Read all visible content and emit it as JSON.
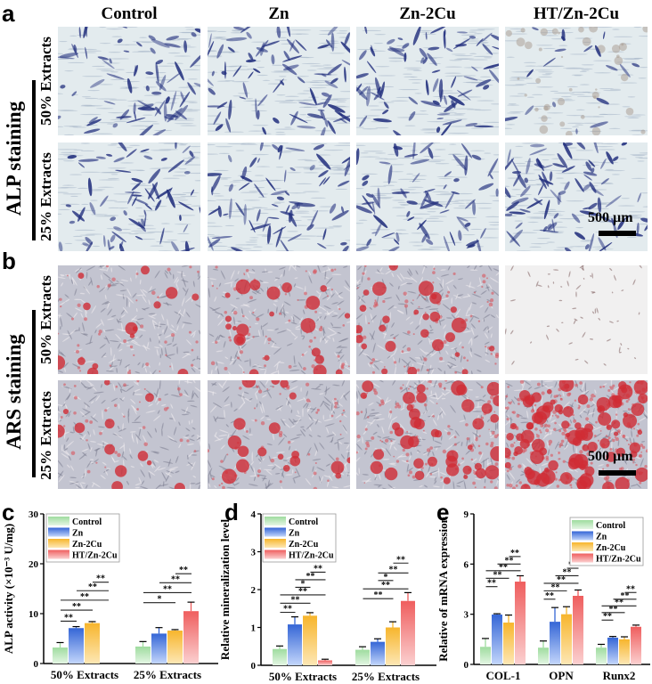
{
  "panels": {
    "a": "a",
    "b": "b",
    "c": "c",
    "d": "d",
    "e": "e"
  },
  "column_headers": [
    "Control",
    "Zn",
    "Zn-2Cu",
    "HT/Zn-2Cu"
  ],
  "row_groups": {
    "alp": {
      "title": "ALP staining",
      "rows": [
        "50% Extracts",
        "25% Extracts"
      ]
    },
    "ars": {
      "title": "ARS staining",
      "rows": [
        "50% Extracts",
        "25% Extracts"
      ]
    }
  },
  "scale_bar": "500 µm",
  "legend": [
    "Control",
    "Zn",
    "Zn-2Cu",
    "HT/Zn-2Cu"
  ],
  "colors": {
    "Control": "#9fdc9f",
    "Zn": "#3566d6",
    "Zn-2Cu": "#f7b52c",
    "HT/Zn-2Cu": "#ef5e5e"
  },
  "chart_data": [
    {
      "type": "bar",
      "panel": "c",
      "ylabel": "ALP activity (×10⁻³ U/mg)",
      "ylim": [
        0,
        30
      ],
      "yticks": [
        0,
        10,
        20,
        30
      ],
      "categories": [
        "50% Extracts",
        "25% Extracts"
      ],
      "series": [
        {
          "name": "Control",
          "values": [
            3.2,
            3.4
          ],
          "errors": [
            1.0,
            1.0
          ]
        },
        {
          "name": "Zn",
          "values": [
            7.1,
            6.0
          ],
          "errors": [
            0.3,
            1.2
          ]
        },
        {
          "name": "Zn-2Cu",
          "values": [
            8.1,
            6.6
          ],
          "errors": [
            0.3,
            0.2
          ]
        },
        {
          "name": "HT/Zn-2Cu",
          "values": [
            null,
            10.5
          ],
          "errors": [
            null,
            1.8
          ]
        }
      ],
      "significance": [
        [
          0,
          0,
          1,
          8.5,
          "**"
        ],
        [
          0,
          0,
          2,
          10.7,
          "**"
        ],
        [
          0,
          0,
          3,
          12.7,
          "**"
        ],
        [
          0,
          1,
          3,
          14.6,
          "**"
        ],
        [
          0,
          2,
          3,
          16.3,
          "**"
        ],
        [
          1,
          0,
          2,
          12.2,
          "*"
        ],
        [
          1,
          0,
          3,
          14.2,
          "**"
        ],
        [
          1,
          1,
          3,
          16.2,
          "**"
        ],
        [
          1,
          2,
          3,
          18.0,
          "**"
        ]
      ],
      "legend_position": "top-left"
    },
    {
      "type": "bar",
      "panel": "d",
      "ylabel": "Relative mineralization level",
      "ylim": [
        0,
        4
      ],
      "yticks": [
        0,
        1,
        2,
        3,
        4
      ],
      "categories": [
        "50% Extracts",
        "25% Extracts"
      ],
      "series": [
        {
          "name": "Control",
          "values": [
            0.43,
            0.41
          ],
          "errors": [
            0.08,
            0.08
          ]
        },
        {
          "name": "Zn",
          "values": [
            1.08,
            0.62
          ],
          "errors": [
            0.2,
            0.08
          ]
        },
        {
          "name": "Zn-2Cu",
          "values": [
            1.31,
            1.0
          ],
          "errors": [
            0.08,
            0.15
          ]
        },
        {
          "name": "HT/Zn-2Cu",
          "values": [
            0.13,
            1.7
          ],
          "errors": [
            0.03,
            0.22
          ]
        }
      ],
      "significance": [
        [
          0,
          0,
          1,
          1.4,
          "**"
        ],
        [
          0,
          0,
          2,
          1.64,
          "**"
        ],
        [
          0,
          0,
          3,
          1.86,
          "**"
        ],
        [
          0,
          1,
          2,
          2.06,
          "*"
        ],
        [
          0,
          1,
          3,
          2.26,
          "**"
        ],
        [
          0,
          2,
          3,
          2.46,
          "**"
        ],
        [
          1,
          0,
          2,
          1.76,
          "**"
        ],
        [
          1,
          0,
          3,
          2.02,
          "**"
        ],
        [
          1,
          1,
          2,
          2.24,
          "*"
        ],
        [
          1,
          1,
          3,
          2.44,
          "**"
        ],
        [
          1,
          2,
          3,
          2.7,
          "**"
        ]
      ],
      "legend_position": "top-left"
    },
    {
      "type": "bar",
      "panel": "e",
      "ylabel": "Relative of mRNA expression",
      "ylim": [
        0,
        9
      ],
      "yticks": [
        0,
        3,
        6,
        9
      ],
      "categories": [
        "COL-1",
        "OPN",
        "Runx2"
      ],
      "series": [
        {
          "name": "Control",
          "values": [
            1.05,
            1.0,
            1.0
          ],
          "errors": [
            0.5,
            0.4,
            0.2
          ]
        },
        {
          "name": "Zn",
          "values": [
            2.98,
            2.55,
            1.6
          ],
          "errors": [
            0.05,
            0.85,
            0.07
          ]
        },
        {
          "name": "Zn-2Cu",
          "values": [
            2.5,
            3.0,
            1.5
          ],
          "errors": [
            0.45,
            0.45,
            0.15
          ]
        },
        {
          "name": "HT/Zn-2Cu",
          "values": [
            4.95,
            4.1,
            2.25
          ],
          "errors": [
            0.35,
            0.35,
            0.1
          ]
        }
      ],
      "significance": [
        [
          0,
          0,
          1,
          4.65,
          "**"
        ],
        [
          0,
          0,
          2,
          5.15,
          "**"
        ],
        [
          0,
          0,
          3,
          5.6,
          "**"
        ],
        [
          0,
          1,
          3,
          6.0,
          "**"
        ],
        [
          0,
          2,
          3,
          6.45,
          "**"
        ],
        [
          1,
          0,
          1,
          3.9,
          "**"
        ],
        [
          1,
          0,
          2,
          4.4,
          "**"
        ],
        [
          1,
          0,
          3,
          4.85,
          "**"
        ],
        [
          1,
          1,
          3,
          5.3,
          "**"
        ],
        [
          1,
          2,
          3,
          5.75,
          "**"
        ],
        [
          2,
          0,
          1,
          2.65,
          "**"
        ],
        [
          2,
          0,
          2,
          3.1,
          "**"
        ],
        [
          2,
          0,
          3,
          3.5,
          "**"
        ],
        [
          2,
          1,
          3,
          3.9,
          "**"
        ],
        [
          2,
          2,
          3,
          4.3,
          "**"
        ]
      ],
      "legend_position": "top-right"
    }
  ]
}
